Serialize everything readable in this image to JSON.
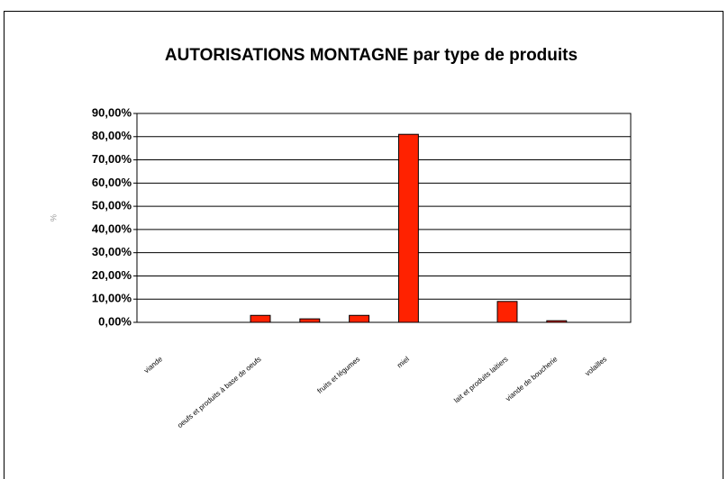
{
  "chart_data": {
    "type": "bar",
    "title": "AUTORISATIONS MONTAGNE par type de produits",
    "y_label": "%",
    "categories": [
      "viande",
      null,
      "oeufs et produits à base de oeufs",
      null,
      "fruits et légumes",
      "miel",
      null,
      "lait et produits laitiers",
      "viande de boucherie",
      "volailles"
    ],
    "values": [
      0,
      0,
      3,
      1.5,
      3,
      81,
      0,
      9,
      0.7,
      0
    ],
    "color": "#ff2200",
    "ylim": [
      0,
      90
    ],
    "yticks": [
      {
        "value": 0,
        "label": "0,00%"
      },
      {
        "value": 10,
        "label": "10,00%"
      },
      {
        "value": 20,
        "label": "20,00%"
      },
      {
        "value": 30,
        "label": "30,00%"
      },
      {
        "value": 40,
        "label": "40,00%"
      },
      {
        "value": 50,
        "label": "50,00%"
      },
      {
        "value": 60,
        "label": "60,00%"
      },
      {
        "value": 70,
        "label": "70,00%"
      },
      {
        "value": 80,
        "label": "80,00%"
      },
      {
        "value": 90,
        "label": "90,00%"
      }
    ],
    "grid": true
  }
}
